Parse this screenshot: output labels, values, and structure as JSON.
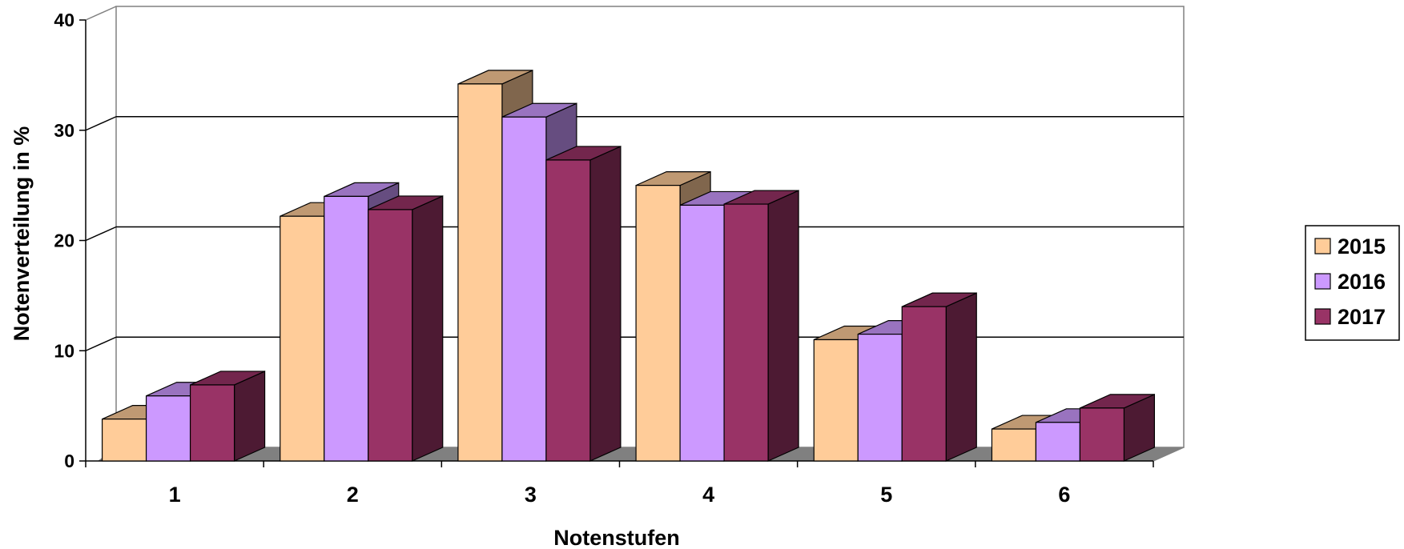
{
  "chart_data": {
    "type": "bar",
    "subtype": "3d-clustered-column",
    "xlabel": "Notenstufen",
    "ylabel": "Notenverteilung in %",
    "categories": [
      "1",
      "2",
      "3",
      "4",
      "5",
      "6"
    ],
    "ylim": [
      0,
      40
    ],
    "yticks": [
      "0",
      "10",
      "20",
      "30",
      "40"
    ],
    "grid": true,
    "legend_position": "right",
    "series": [
      {
        "name": "2015",
        "color": "#FFCC99",
        "values": [
          3.8,
          22.2,
          34.2,
          25.0,
          11.0,
          2.9
        ]
      },
      {
        "name": "2016",
        "color": "#CC99FF",
        "values": [
          5.9,
          24.0,
          31.2,
          23.2,
          11.5,
          3.5
        ]
      },
      {
        "name": "2017",
        "color": "#993366",
        "values": [
          6.9,
          22.8,
          27.3,
          23.3,
          14.0,
          4.8
        ]
      }
    ]
  }
}
